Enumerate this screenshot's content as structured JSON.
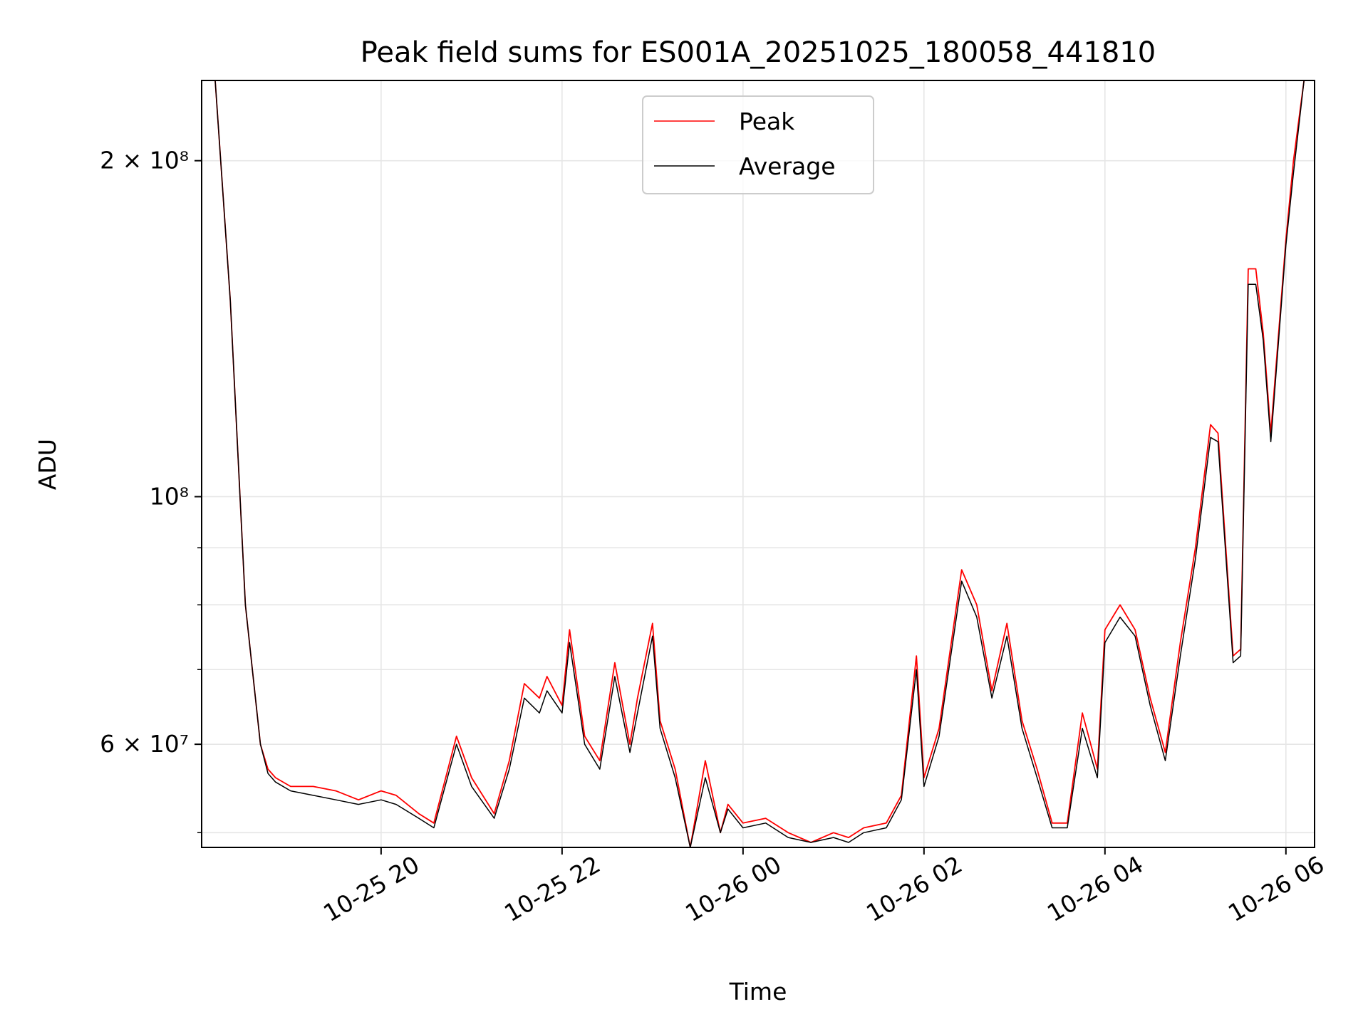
{
  "chart_data": {
    "type": "line",
    "title": "Peak field sums for ES001A_20251025_180058_441810",
    "xlabel": "Time",
    "ylabel": "ADU",
    "yscale": "log",
    "xlim": [
      "2025-10-25 18:01",
      "2025-10-26 06:19"
    ],
    "ylim": [
      48500000,
      236000000
    ],
    "grid": true,
    "legend_position": "upper center",
    "x_ticks": [
      {
        "value": "2025-10-25 20:00",
        "label": "10-25 20"
      },
      {
        "value": "2025-10-25 22:00",
        "label": "10-25 22"
      },
      {
        "value": "2025-10-26 00:00",
        "label": "10-26 00"
      },
      {
        "value": "2025-10-26 02:00",
        "label": "10-26 02"
      },
      {
        "value": "2025-10-26 04:00",
        "label": "10-26 04"
      },
      {
        "value": "2025-10-26 06:00",
        "label": "10-26 06"
      }
    ],
    "y_major_ticks": [
      {
        "value": 60000000,
        "label": "6 × 10⁷"
      },
      {
        "value": 100000000,
        "label": "10⁸"
      },
      {
        "value": 200000000,
        "label": "2 × 10⁸"
      }
    ],
    "y_minor_ticks": [
      50000000,
      70000000,
      80000000,
      90000000
    ],
    "colors": {
      "peak": "#ff0000",
      "average": "#000000",
      "grid": "#e6e6e6"
    },
    "series": [
      {
        "name": "Peak",
        "color": "#ff0000",
        "x": [
          "2025-10-25 18:01",
          "2025-10-25 18:10",
          "2025-10-25 18:20",
          "2025-10-25 18:30",
          "2025-10-25 18:40",
          "2025-10-25 18:45",
          "2025-10-25 18:50",
          "2025-10-25 19:00",
          "2025-10-25 19:15",
          "2025-10-25 19:30",
          "2025-10-25 19:45",
          "2025-10-25 20:00",
          "2025-10-25 20:10",
          "2025-10-25 20:25",
          "2025-10-25 20:35",
          "2025-10-25 20:50",
          "2025-10-25 21:00",
          "2025-10-25 21:15",
          "2025-10-25 21:25",
          "2025-10-25 21:35",
          "2025-10-25 21:45",
          "2025-10-25 21:50",
          "2025-10-25 22:00",
          "2025-10-25 22:05",
          "2025-10-25 22:15",
          "2025-10-25 22:25",
          "2025-10-25 22:35",
          "2025-10-25 22:45",
          "2025-10-25 22:50",
          "2025-10-25 23:00",
          "2025-10-25 23:05",
          "2025-10-25 23:15",
          "2025-10-25 23:25",
          "2025-10-25 23:35",
          "2025-10-25 23:45",
          "2025-10-25 23:50",
          "2025-10-26 00:00",
          "2025-10-26 00:15",
          "2025-10-26 00:30",
          "2025-10-26 00:45",
          "2025-10-26 01:00",
          "2025-10-26 01:10",
          "2025-10-26 01:20",
          "2025-10-26 01:35",
          "2025-10-26 01:45",
          "2025-10-26 01:55",
          "2025-10-26 02:00",
          "2025-10-26 02:10",
          "2025-10-26 02:25",
          "2025-10-26 02:35",
          "2025-10-26 02:45",
          "2025-10-26 02:55",
          "2025-10-26 03:05",
          "2025-10-26 03:15",
          "2025-10-26 03:25",
          "2025-10-26 03:35",
          "2025-10-26 03:45",
          "2025-10-26 03:55",
          "2025-10-26 04:00",
          "2025-10-26 04:10",
          "2025-10-26 04:20",
          "2025-10-26 04:30",
          "2025-10-26 04:40",
          "2025-10-26 04:50",
          "2025-10-26 05:00",
          "2025-10-26 05:10",
          "2025-10-26 05:15",
          "2025-10-26 05:25",
          "2025-10-26 05:30",
          "2025-10-26 05:35",
          "2025-10-26 05:40",
          "2025-10-26 05:45",
          "2025-10-26 05:50",
          "2025-10-26 06:00",
          "2025-10-26 06:05",
          "2025-10-26 06:12",
          "2025-10-26 06:19"
        ],
        "y": [
          236000000,
          236000000,
          150000000,
          80000000,
          60000000,
          57000000,
          56000000,
          55000000,
          55000000,
          54500000,
          53500000,
          54500000,
          54000000,
          52000000,
          51000000,
          61000000,
          56000000,
          52000000,
          58000000,
          68000000,
          66000000,
          69000000,
          65000000,
          76000000,
          61000000,
          58000000,
          71000000,
          60000000,
          66000000,
          77000000,
          63000000,
          57000000,
          48500000,
          58000000,
          50000000,
          53000000,
          51000000,
          51500000,
          50000000,
          49000000,
          50000000,
          49500000,
          50500000,
          51000000,
          54000000,
          72000000,
          56000000,
          62000000,
          86000000,
          80000000,
          67000000,
          77000000,
          63000000,
          57000000,
          51000000,
          51000000,
          64000000,
          57000000,
          76000000,
          80000000,
          76000000,
          66000000,
          59000000,
          74000000,
          90000000,
          116000000,
          114000000,
          72000000,
          73000000,
          160000000,
          160000000,
          140000000,
          114000000,
          170000000,
          200000000,
          236000000,
          236000000
        ]
      },
      {
        "name": "Average",
        "color": "#000000",
        "x": [
          "2025-10-25 18:01",
          "2025-10-25 18:10",
          "2025-10-25 18:20",
          "2025-10-25 18:30",
          "2025-10-25 18:40",
          "2025-10-25 18:45",
          "2025-10-25 18:50",
          "2025-10-25 19:00",
          "2025-10-25 19:15",
          "2025-10-25 19:30",
          "2025-10-25 19:45",
          "2025-10-25 20:00",
          "2025-10-25 20:10",
          "2025-10-25 20:25",
          "2025-10-25 20:35",
          "2025-10-25 20:50",
          "2025-10-25 21:00",
          "2025-10-25 21:15",
          "2025-10-25 21:25",
          "2025-10-25 21:35",
          "2025-10-25 21:45",
          "2025-10-25 21:50",
          "2025-10-25 22:00",
          "2025-10-25 22:05",
          "2025-10-25 22:15",
          "2025-10-25 22:25",
          "2025-10-25 22:35",
          "2025-10-25 22:45",
          "2025-10-25 22:50",
          "2025-10-25 23:00",
          "2025-10-25 23:05",
          "2025-10-25 23:15",
          "2025-10-25 23:25",
          "2025-10-25 23:35",
          "2025-10-25 23:45",
          "2025-10-25 23:50",
          "2025-10-26 00:00",
          "2025-10-26 00:15",
          "2025-10-26 00:30",
          "2025-10-26 00:45",
          "2025-10-26 01:00",
          "2025-10-26 01:10",
          "2025-10-26 01:20",
          "2025-10-26 01:35",
          "2025-10-26 01:45",
          "2025-10-26 01:55",
          "2025-10-26 02:00",
          "2025-10-26 02:10",
          "2025-10-26 02:25",
          "2025-10-26 02:35",
          "2025-10-26 02:45",
          "2025-10-26 02:55",
          "2025-10-26 03:05",
          "2025-10-26 03:15",
          "2025-10-26 03:25",
          "2025-10-26 03:35",
          "2025-10-26 03:45",
          "2025-10-26 03:55",
          "2025-10-26 04:00",
          "2025-10-26 04:10",
          "2025-10-26 04:20",
          "2025-10-26 04:30",
          "2025-10-26 04:40",
          "2025-10-26 04:50",
          "2025-10-26 05:00",
          "2025-10-26 05:10",
          "2025-10-26 05:15",
          "2025-10-26 05:25",
          "2025-10-26 05:30",
          "2025-10-26 05:35",
          "2025-10-26 05:40",
          "2025-10-26 05:45",
          "2025-10-26 05:50",
          "2025-10-26 06:00",
          "2025-10-26 06:05",
          "2025-10-26 06:12",
          "2025-10-26 06:19"
        ],
        "y": [
          236000000,
          236000000,
          150000000,
          80000000,
          60000000,
          56500000,
          55500000,
          54500000,
          54000000,
          53500000,
          53000000,
          53500000,
          53000000,
          51500000,
          50500000,
          60000000,
          55000000,
          51500000,
          57000000,
          66000000,
          64000000,
          67000000,
          64000000,
          74000000,
          60000000,
          57000000,
          69000000,
          59000000,
          64000000,
          75000000,
          62000000,
          56000000,
          48500000,
          56000000,
          50000000,
          52500000,
          50500000,
          51000000,
          49500000,
          49000000,
          49500000,
          49000000,
          50000000,
          50500000,
          53500000,
          70000000,
          55000000,
          61000000,
          84000000,
          78000000,
          66000000,
          75000000,
          62000000,
          56000000,
          50500000,
          50500000,
          62000000,
          56000000,
          74000000,
          78000000,
          75000000,
          65000000,
          58000000,
          72000000,
          88000000,
          113000000,
          112000000,
          71000000,
          72000000,
          155000000,
          155000000,
          138000000,
          112000000,
          168000000,
          195000000,
          236000000,
          236000000
        ]
      }
    ]
  }
}
